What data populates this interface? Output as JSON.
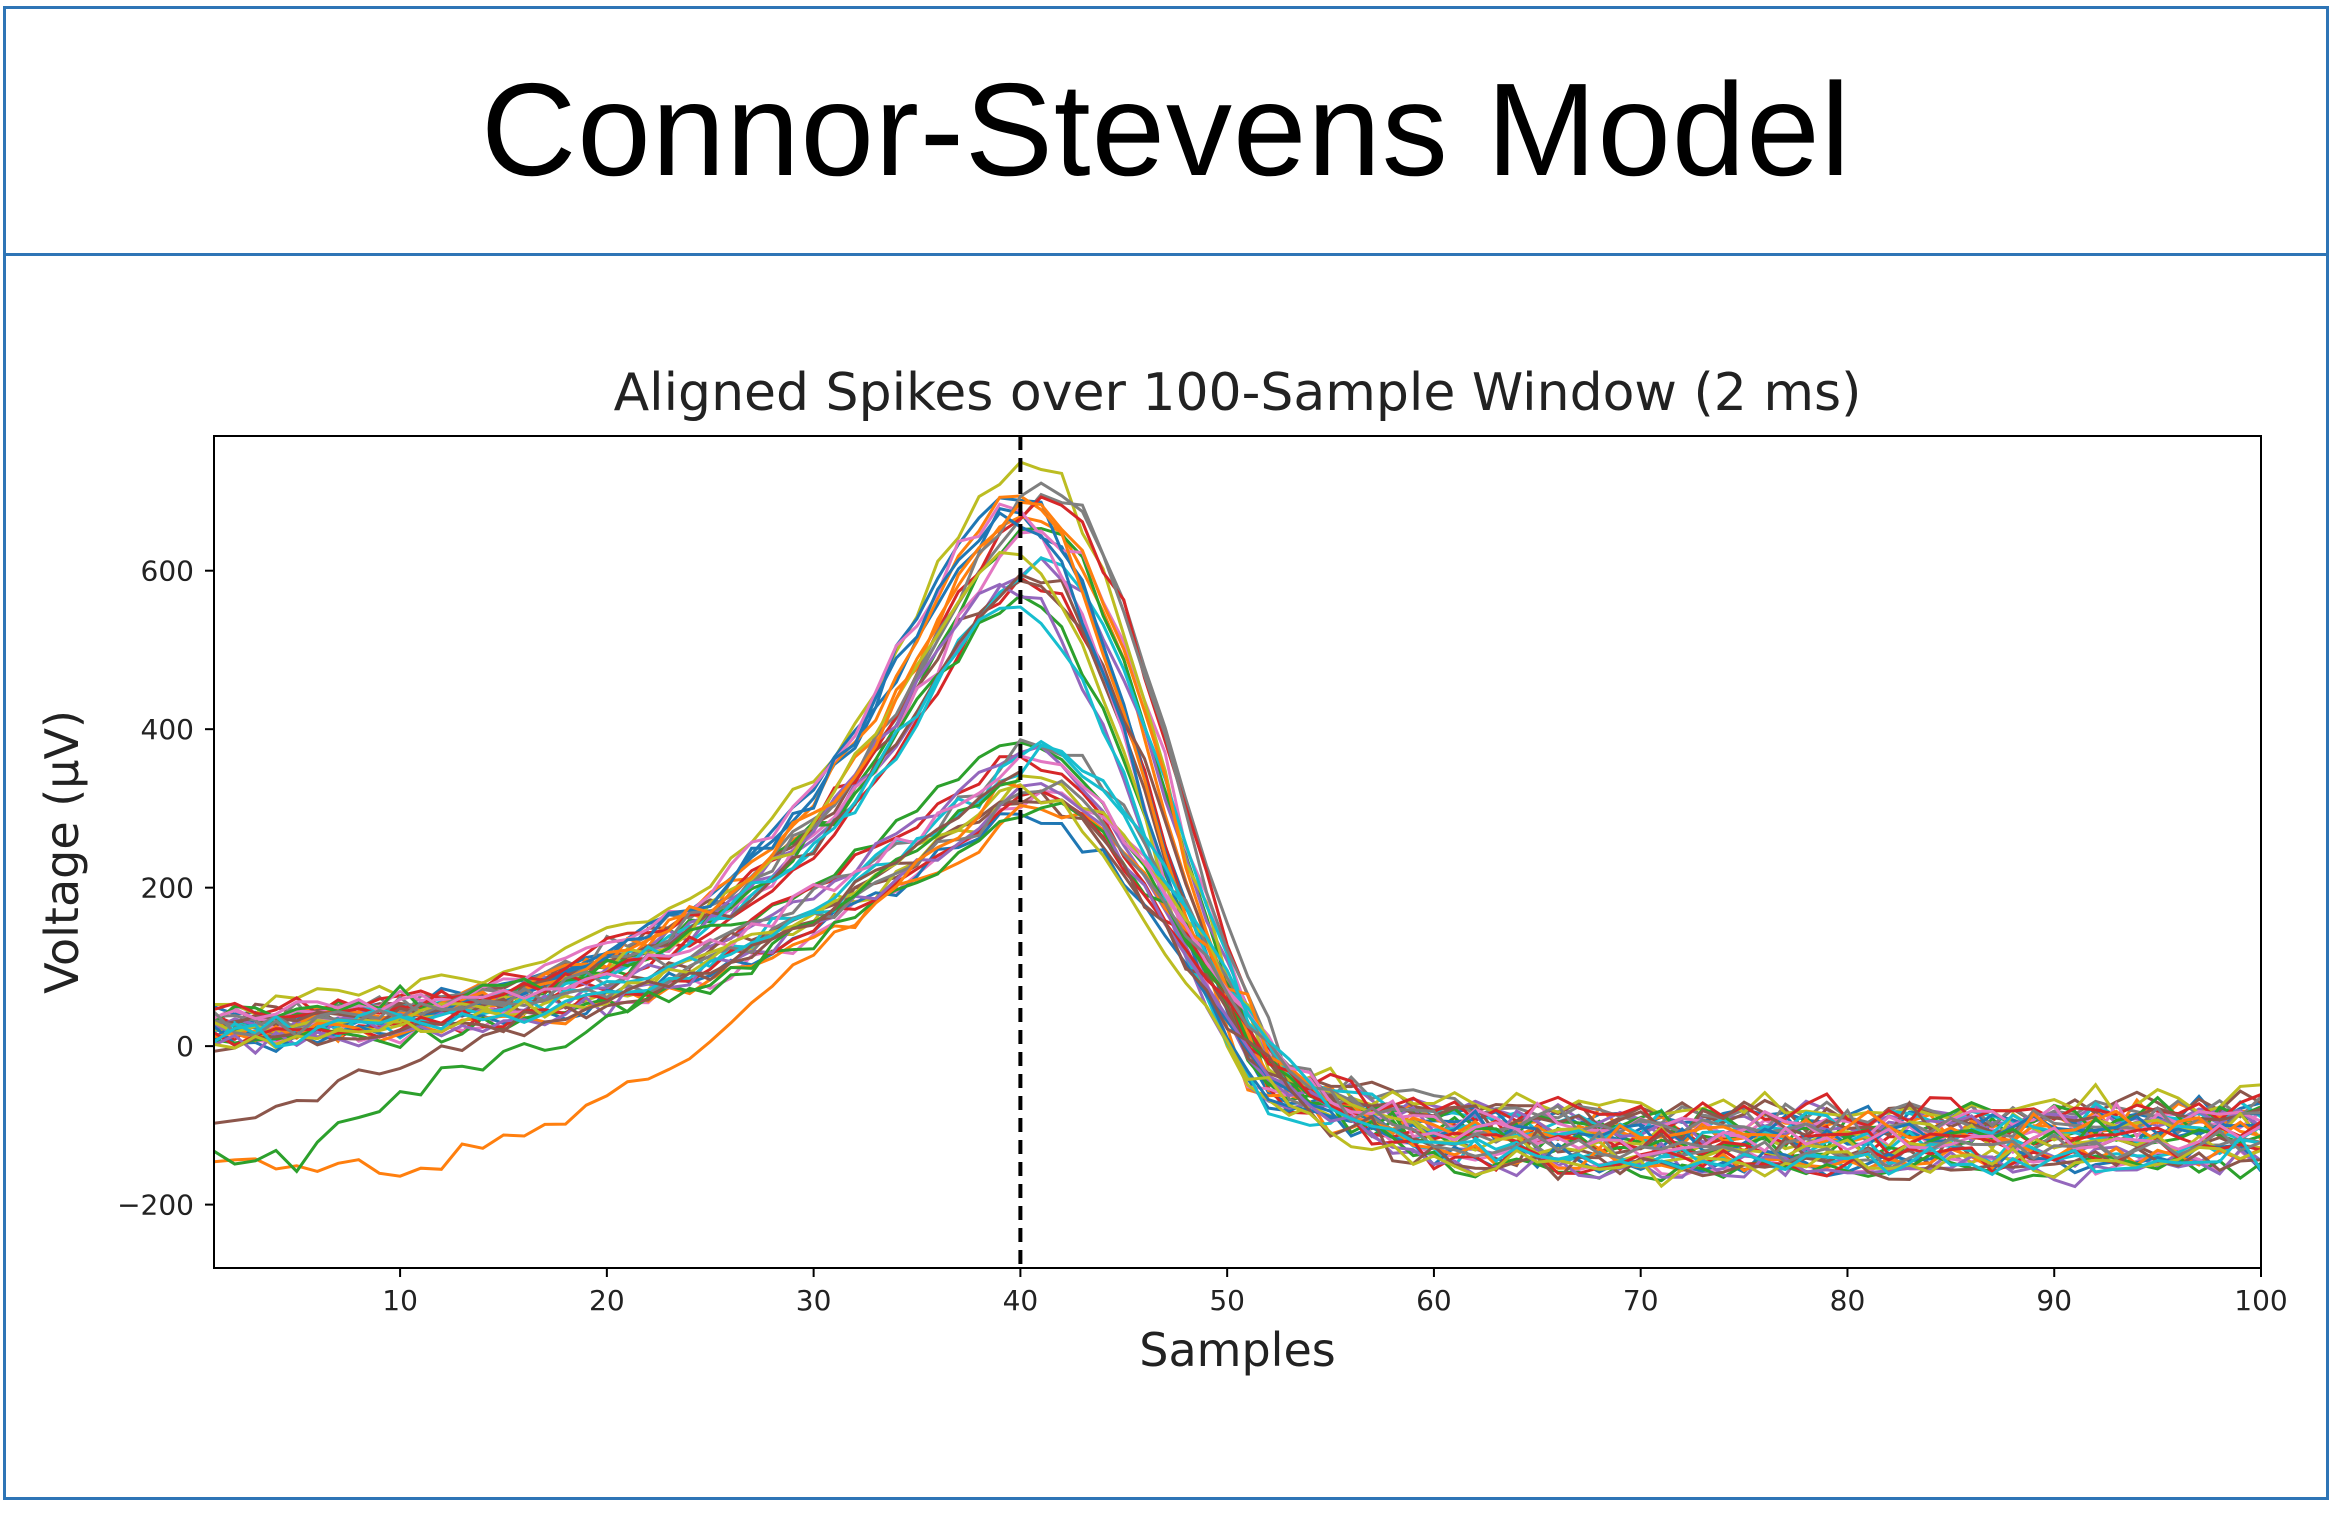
{
  "header": {
    "title": "Connor-Stevens Model"
  },
  "colors": {
    "frame": "#2e75b6",
    "palette": [
      "#1f77b4",
      "#ff7f0e",
      "#2ca02c",
      "#d62728",
      "#9467bd",
      "#8c564b",
      "#e377c2",
      "#7f7f7f",
      "#bcbd22",
      "#17becf"
    ],
    "marker_line": "#000000"
  },
  "chart_data": {
    "type": "line",
    "title": "Aligned Spikes over 100-Sample Window (2 ms)",
    "xlabel": "Samples",
    "ylabel": "Voltage (μV)",
    "xlim": [
      1,
      100
    ],
    "ylim": [
      -280,
      770
    ],
    "xticks": [
      10,
      20,
      30,
      40,
      50,
      60,
      70,
      80,
      90,
      100
    ],
    "yticks": [
      -200,
      0,
      200,
      400,
      600
    ],
    "xtick_labels": [
      "10",
      "20",
      "30",
      "40",
      "50",
      "60",
      "70",
      "80",
      "90",
      "100"
    ],
    "ytick_labels": [
      "−200",
      "0",
      "200",
      "400",
      "600"
    ],
    "grid": false,
    "legend": "none",
    "alignment_marker": {
      "x": 40,
      "style": "dashed"
    },
    "series_groups": [
      {
        "description_count": 22,
        "typical": [
          [
            1,
            30
          ],
          [
            5,
            30
          ],
          [
            10,
            45
          ],
          [
            15,
            65
          ],
          [
            20,
            110
          ],
          [
            25,
            170
          ],
          [
            30,
            280
          ],
          [
            33,
            380
          ],
          [
            36,
            520
          ],
          [
            38,
            600
          ],
          [
            40,
            650
          ],
          [
            42,
            620
          ],
          [
            44,
            520
          ],
          [
            46,
            370
          ],
          [
            48,
            200
          ],
          [
            50,
            60
          ],
          [
            52,
            -50
          ],
          [
            55,
            -70
          ],
          [
            60,
            -90
          ],
          [
            70,
            -100
          ],
          [
            80,
            -100
          ],
          [
            90,
            -95
          ],
          [
            100,
            -90
          ]
        ]
      },
      {
        "description_count": 18,
        "typical": [
          [
            1,
            20
          ],
          [
            5,
            25
          ],
          [
            10,
            35
          ],
          [
            15,
            45
          ],
          [
            20,
            70
          ],
          [
            25,
            110
          ],
          [
            30,
            170
          ],
          [
            35,
            250
          ],
          [
            38,
            300
          ],
          [
            40,
            345
          ],
          [
            42,
            340
          ],
          [
            44,
            290
          ],
          [
            46,
            220
          ],
          [
            48,
            140
          ],
          [
            50,
            60
          ],
          [
            52,
            -20
          ],
          [
            55,
            -80
          ],
          [
            60,
            -130
          ],
          [
            70,
            -140
          ],
          [
            80,
            -140
          ],
          [
            90,
            -135
          ],
          [
            100,
            -130
          ]
        ]
      }
    ],
    "outlier_traces": [
      {
        "name_hidden": true,
        "values": [
          [
            1,
            -160
          ],
          [
            3,
            -140
          ],
          [
            5,
            -150
          ],
          [
            8,
            -140
          ],
          [
            10,
            -170
          ],
          [
            12,
            -150
          ],
          [
            15,
            -110
          ],
          [
            18,
            -90
          ],
          [
            20,
            -70
          ],
          [
            22,
            -40
          ],
          [
            24,
            -10
          ],
          [
            26,
            30
          ],
          [
            28,
            80
          ],
          [
            30,
            120
          ],
          [
            33,
            180
          ],
          [
            36,
            240
          ],
          [
            38,
            290
          ],
          [
            40,
            340
          ]
        ]
      },
      {
        "name_hidden": true,
        "values": [
          [
            1,
            -140
          ],
          [
            3,
            -150
          ],
          [
            5,
            -140
          ],
          [
            7,
            -100
          ],
          [
            9,
            -70
          ],
          [
            11,
            -55
          ],
          [
            13,
            -30
          ],
          [
            16,
            0
          ],
          [
            19,
            20
          ],
          [
            22,
            50
          ],
          [
            25,
            80
          ],
          [
            28,
            120
          ],
          [
            31,
            170
          ],
          [
            34,
            230
          ],
          [
            37,
            290
          ],
          [
            40,
            340
          ]
        ]
      },
      {
        "name_hidden": true,
        "values": [
          [
            1,
            -100
          ],
          [
            3,
            -90
          ],
          [
            5,
            -70
          ],
          [
            8,
            -40
          ],
          [
            11,
            -10
          ],
          [
            14,
            10
          ],
          [
            17,
            30
          ],
          [
            20,
            50
          ],
          [
            23,
            80
          ],
          [
            26,
            110
          ],
          [
            29,
            150
          ],
          [
            32,
            200
          ],
          [
            35,
            260
          ],
          [
            38,
            310
          ],
          [
            40,
            345
          ]
        ]
      }
    ]
  }
}
